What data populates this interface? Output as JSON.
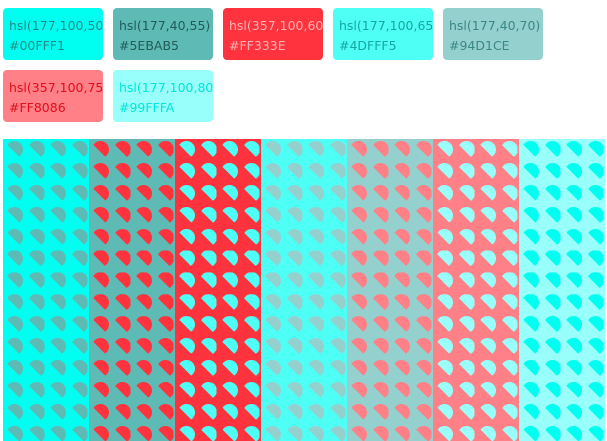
{
  "swatches": [
    {
      "hsl": "hsl(177,100,50)",
      "hex": "#00FFF1",
      "bg": "#00FFF1",
      "text_color": "#1E8C86"
    },
    {
      "hsl": "hsl(177,40,55)",
      "hex": "#5EBAB5",
      "bg": "#5EBAB5",
      "text_color": "#215C58"
    },
    {
      "hsl": "hsl(357,100,60)",
      "hex": "#FF333E",
      "bg": "#FF333E",
      "text_color": "#FFB3B7"
    },
    {
      "hsl": "hsl(177,100,65)",
      "hex": "#4DFFF5",
      "bg": "#4DFFF5",
      "text_color": "#14A89F"
    },
    {
      "hsl": "hsl(177,40,70)",
      "hex": "#94D1CE",
      "bg": "#94D1CE",
      "text_color": "#3A8783"
    },
    {
      "hsl": "hsl(357,100,75)",
      "hex": "#FF8086",
      "bg": "#FF8086",
      "text_color": "#E00D1B"
    },
    {
      "hsl": "hsl(177,100,80)",
      "hex": "#99FFFA",
      "bg": "#99FFFA",
      "text_color": "#00E6DA"
    }
  ],
  "pattern": {
    "rows": 14,
    "shapes_per_row": 4,
    "columns": [
      {
        "bg": "#00FFF1",
        "shape": "#5EBAB5"
      },
      {
        "bg": "#5EBAB5",
        "shape": "#FF333E"
      },
      {
        "bg": "#FF333E",
        "shape": "#4DFFF5"
      },
      {
        "bg": "#4DFFF5",
        "shape": "#94D1CE"
      },
      {
        "bg": "#94D1CE",
        "shape": "#FF8086"
      },
      {
        "bg": "#FF8086",
        "shape": "#99FFFA"
      },
      {
        "bg": "#99FFFA",
        "shape": "#00FFF1"
      }
    ]
  }
}
